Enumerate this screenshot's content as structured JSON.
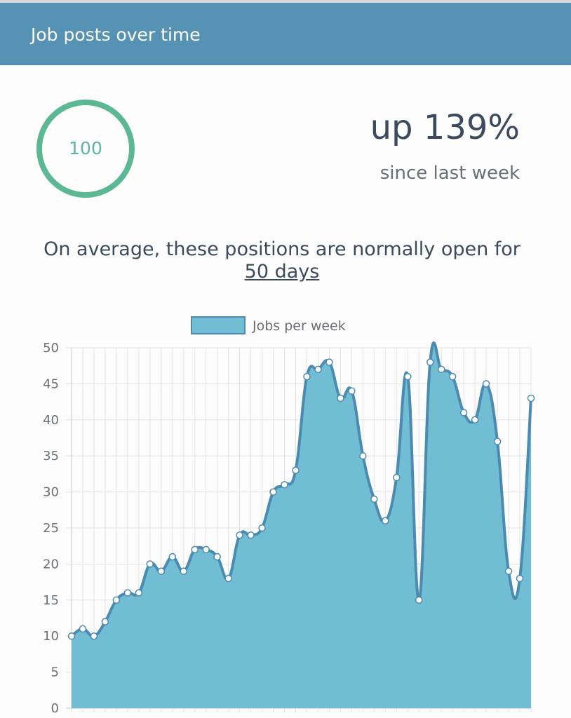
{
  "header": {
    "title": "Job posts over time"
  },
  "score": {
    "value": "100",
    "ring_color": "#5cb795"
  },
  "change": {
    "value": "up 139%",
    "subtitle": "since last week"
  },
  "average": {
    "text": "On average, these positions are normally open for",
    "days": "50 days"
  },
  "colors": {
    "header": "#5592b4",
    "area_fill": "#71bdd3",
    "line": "#4b8ab1",
    "text": "#3c4a5e"
  },
  "chart_data": {
    "type": "area",
    "legend": [
      "Jobs per week"
    ],
    "legend_position": "top-center",
    "grid": true,
    "ylim": [
      0,
      50
    ],
    "yticks": [
      0,
      5,
      10,
      15,
      20,
      25,
      30,
      35,
      40,
      45,
      50
    ],
    "series": [
      {
        "name": "Jobs per week",
        "values": [
          10,
          11,
          10,
          12,
          15,
          16,
          16,
          20,
          19,
          21,
          19,
          22,
          22,
          21,
          18,
          24,
          24,
          25,
          30,
          31,
          33,
          46,
          47,
          48,
          43,
          44,
          35,
          29,
          26,
          32,
          46,
          15,
          48,
          47,
          46,
          41,
          40,
          45,
          37,
          19,
          18,
          43
        ]
      }
    ]
  }
}
